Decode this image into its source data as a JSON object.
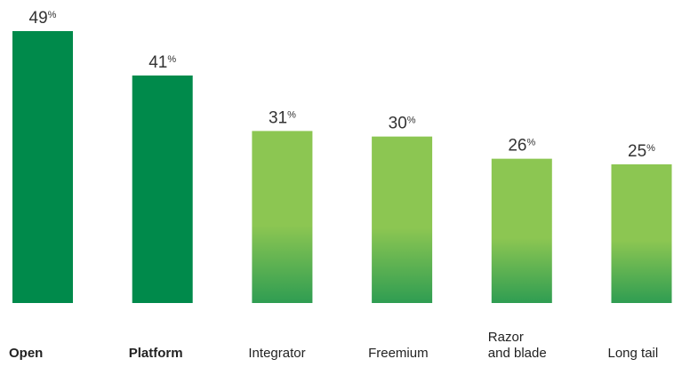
{
  "chart_data": {
    "type": "bar",
    "categories": [
      "Open",
      "Platform",
      "Integrator",
      "Freemium",
      "Razor\nand blade",
      "Long tail"
    ],
    "values": [
      49,
      41,
      31,
      30,
      26,
      25
    ],
    "value_labels": [
      "49%",
      "41%",
      "31%",
      "30%",
      "26%",
      "25%"
    ],
    "colors": [
      "#008a4b",
      "#008a4b",
      "#8cc652",
      "#8cc652",
      "#8cc652",
      "#8cc652"
    ]
  }
}
